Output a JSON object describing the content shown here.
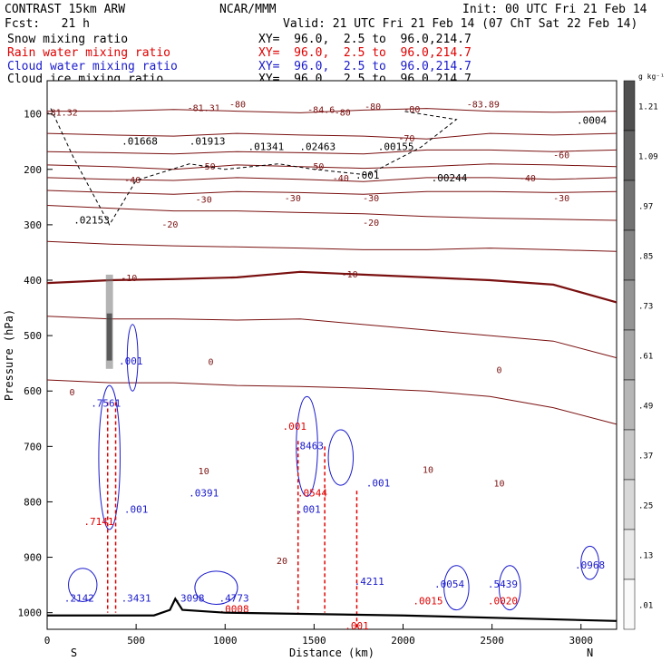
{
  "header": {
    "model": "CONTRAST 15km ARW",
    "center": "NCAR/MMM",
    "init": "Init: 00 UTC Fri 21 Feb 14",
    "fcst": "Fcst:   21 h",
    "valid": "Valid: 21 UTC Fri 21 Feb 14 (07 ChT Sat 22 Feb 14)"
  },
  "fields": [
    {
      "name": "Snow mixing ratio",
      "color": "#000000",
      "xy": "XY=  96.0,  2.5 to  96.0,214.7"
    },
    {
      "name": "Rain water mixing ratio",
      "color": "#e00000",
      "xy": "XY=  96.0,  2.5 to  96.0,214.7"
    },
    {
      "name": "Cloud water mixing ratio",
      "color": "#1a1acc",
      "xy": "XY=  96.0,  2.5 to  96.0,214.7"
    },
    {
      "name": "Cloud ice mixing ratio",
      "color": "#000000",
      "xy": "XY=  96.0,  2.5 to  96.0,214.7"
    }
  ],
  "chart_data": {
    "type": "contour",
    "xlabel": "Distance (km)",
    "ylabel": "Pressure (hPa)",
    "xlim": [
      0,
      3200
    ],
    "ylim": [
      1030,
      40
    ],
    "x_ticks": [
      0,
      500,
      1000,
      1500,
      2000,
      2500,
      3000
    ],
    "y_ticks": [
      100,
      200,
      300,
      400,
      500,
      600,
      700,
      800,
      900,
      1000
    ],
    "x_end_labels": {
      "left": "S",
      "right": "N"
    },
    "colorbar": {
      "unit": "g kg⁻¹",
      "ticks": [
        "1.21",
        "1.09",
        ".97",
        ".85",
        ".73",
        ".61",
        ".49",
        ".37",
        ".25",
        ".13",
        ".01"
      ]
    },
    "temperature_isotherms": [
      {
        "label": "-80",
        "y": [
          95,
          95,
          92,
          95,
          98,
          93,
          90,
          95,
          97,
          95
        ]
      },
      {
        "label": "-70",
        "y": [
          135,
          138,
          140,
          135,
          138,
          140,
          145,
          135,
          138,
          135
        ]
      },
      {
        "label": "-60",
        "y": [
          168,
          170,
          172,
          168,
          170,
          172,
          165,
          165,
          168,
          165
        ]
      },
      {
        "label": "-50",
        "y": [
          192,
          195,
          200,
          192,
          195,
          198,
          195,
          190,
          192,
          195
        ]
      },
      {
        "label": "-40",
        "y": [
          215,
          218,
          220,
          215,
          218,
          222,
          215,
          215,
          218,
          215
        ]
      },
      {
        "label": "-30",
        "y": [
          238,
          242,
          245,
          240,
          242,
          245,
          240,
          240,
          242,
          240
        ]
      },
      {
        "label": "-20",
        "y": [
          265,
          270,
          275,
          275,
          278,
          280,
          285,
          288,
          290,
          292
        ]
      },
      {
        "label": "-10",
        "y": [
          330,
          335,
          338,
          340,
          342,
          345,
          345,
          342,
          345,
          348
        ]
      },
      {
        "label": "0",
        "y": [
          405,
          400,
          398,
          395,
          385,
          390,
          395,
          400,
          408,
          440
        ],
        "bold": true
      },
      {
        "label": "10",
        "y": [
          465,
          470,
          470,
          472,
          470,
          480,
          490,
          500,
          510,
          540
        ]
      },
      {
        "label": "20",
        "y": [
          580,
          585,
          585,
          590,
          592,
          595,
          600,
          610,
          630,
          660
        ]
      }
    ],
    "temperature_labels": [
      {
        "text": "-81.32",
        "x": 80,
        "p": 103
      },
      {
        "text": "-81.31",
        "x": 880,
        "p": 95
      },
      {
        "text": "-84.6",
        "x": 1540,
        "p": 98
      },
      {
        "text": "-83.89",
        "x": 2450,
        "p": 88
      },
      {
        "text": "-80",
        "x": 1070,
        "p": 88
      },
      {
        "text": "-80",
        "x": 1660,
        "p": 103
      },
      {
        "text": "-80",
        "x": 2050,
        "p": 97
      },
      {
        "text": "-80",
        "x": 1830,
        "p": 92
      },
      {
        "text": "-70",
        "x": 2020,
        "p": 150
      },
      {
        "text": "-60",
        "x": 2890,
        "p": 180
      },
      {
        "text": "-50",
        "x": 900,
        "p": 200
      },
      {
        "text": "-50",
        "x": 1510,
        "p": 200
      },
      {
        "text": "-40",
        "x": 480,
        "p": 225
      },
      {
        "text": "-40",
        "x": 1650,
        "p": 222
      },
      {
        "text": "-40",
        "x": 2700,
        "p": 222
      },
      {
        "text": "-30",
        "x": 880,
        "p": 260
      },
      {
        "text": "-30",
        "x": 1380,
        "p": 258
      },
      {
        "text": "-30",
        "x": 1820,
        "p": 258
      },
      {
        "text": "-30",
        "x": 2890,
        "p": 258
      },
      {
        "text": "-20",
        "x": 690,
        "p": 305
      },
      {
        "text": "-20",
        "x": 1820,
        "p": 302
      },
      {
        "text": "-10",
        "x": 460,
        "p": 402
      },
      {
        "text": "-10",
        "x": 1700,
        "p": 395
      },
      {
        "text": "0",
        "x": 140,
        "p": 608
      },
      {
        "text": "0",
        "x": 920,
        "p": 553
      },
      {
        "text": "0",
        "x": 2540,
        "p": 568
      },
      {
        "text": "10",
        "x": 880,
        "p": 750
      },
      {
        "text": "10",
        "x": 2140,
        "p": 748
      },
      {
        "text": "10",
        "x": 2540,
        "p": 772
      },
      {
        "text": "20",
        "x": 1320,
        "p": 912
      }
    ],
    "H_labels": [
      {
        "text": ".01668",
        "x": 520,
        "p": 155,
        "color": "#000000"
      },
      {
        "text": ".01913",
        "x": 900,
        "p": 155,
        "color": "#000000"
      },
      {
        "text": ".01341",
        "x": 1230,
        "p": 165,
        "color": "#000000"
      },
      {
        "text": ".02463",
        "x": 1520,
        "p": 165,
        "color": "#000000"
      },
      {
        "text": ".00155",
        "x": 1960,
        "p": 165,
        "color": "#000000"
      },
      {
        "text": ".001",
        "x": 1800,
        "p": 217,
        "color": "#000000"
      },
      {
        "text": ".00244",
        "x": 2260,
        "p": 222,
        "color": "#000000"
      },
      {
        "text": ".02153",
        "x": 250,
        "p": 298,
        "color": "#000000"
      },
      {
        "text": ".0004",
        "x": 3060,
        "p": 118,
        "color": "#000000"
      },
      {
        "text": ".001",
        "x": 470,
        "p": 552,
        "color": "#1a1acc"
      },
      {
        "text": ".7561",
        "x": 330,
        "p": 628,
        "color": "#1a1acc"
      },
      {
        "text": ".8463",
        "x": 1470,
        "p": 705,
        "color": "#1a1acc"
      },
      {
        "text": ".0391",
        "x": 880,
        "p": 790,
        "color": "#1a1acc"
      },
      {
        "text": ".001",
        "x": 500,
        "p": 820,
        "color": "#1a1acc"
      },
      {
        "text": ".001",
        "x": 1470,
        "p": 820,
        "color": "#1a1acc"
      },
      {
        "text": ".001",
        "x": 1860,
        "p": 772,
        "color": "#1a1acc"
      },
      {
        "text": ".2142",
        "x": 180,
        "p": 980,
        "color": "#1a1acc"
      },
      {
        "text": ".3431",
        "x": 500,
        "p": 980,
        "color": "#1a1acc"
      },
      {
        "text": ".3098",
        "x": 800,
        "p": 980,
        "color": "#1a1acc"
      },
      {
        "text": ".4773",
        "x": 1050,
        "p": 980,
        "color": "#1a1acc"
      },
      {
        "text": ".4211",
        "x": 1810,
        "p": 950,
        "color": "#1a1acc"
      },
      {
        "text": ".0054",
        "x": 2260,
        "p": 955,
        "color": "#1a1acc"
      },
      {
        "text": ".5439",
        "x": 2560,
        "p": 955,
        "color": "#1a1acc"
      },
      {
        "text": ".0968",
        "x": 3050,
        "p": 920,
        "color": "#1a1acc"
      },
      {
        "text": ".7141",
        "x": 290,
        "p": 842,
        "color": "#e00000"
      },
      {
        "text": ".0544",
        "x": 1490,
        "p": 790,
        "color": "#e00000"
      },
      {
        "text": ".0015",
        "x": 2140,
        "p": 985,
        "color": "#e00000"
      },
      {
        "text": ".0020",
        "x": 2560,
        "p": 985,
        "color": "#e00000"
      },
      {
        "text": ".0008",
        "x": 1050,
        "p": 1000,
        "color": "#e00000"
      },
      {
        "text": ".001",
        "x": 1390,
        "p": 670,
        "color": "#e00000"
      },
      {
        "text": ".001",
        "x": 1740,
        "p": 1030,
        "color": "#e00000"
      }
    ]
  }
}
